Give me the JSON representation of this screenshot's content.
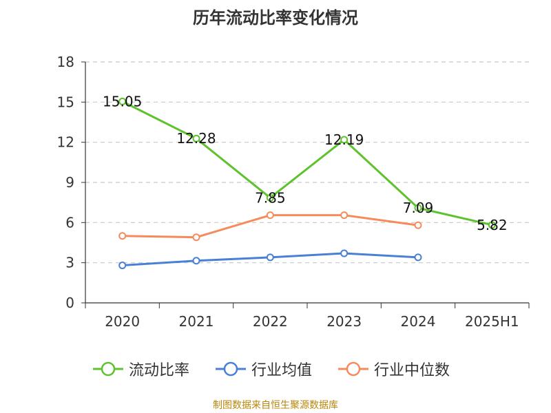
{
  "source_note": "制图数据来自恒生聚源数据库",
  "chart_data": {
    "type": "line",
    "title": "历年流动比率变化情况",
    "categories": [
      "2020",
      "2021",
      "2022",
      "2023",
      "2024",
      "2025H1"
    ],
    "ylim": [
      0,
      18
    ],
    "yticks": [
      0,
      3,
      6,
      9,
      12,
      15,
      18
    ],
    "grid": true,
    "legend_position": "bottom",
    "series": [
      {
        "name": "流动比率",
        "color": "#5ec22d",
        "values": [
          15.05,
          12.28,
          7.85,
          12.19,
          7.09,
          5.82
        ],
        "labels": [
          "15.05",
          "12.28",
          "7.85",
          "12.19",
          "7.09",
          "5.82"
        ]
      },
      {
        "name": "行业均值",
        "color": "#4a7fd6",
        "values": [
          2.8,
          3.15,
          3.4,
          3.7,
          3.4,
          null
        ]
      },
      {
        "name": "行业中位数",
        "color": "#f58b5c",
        "values": [
          5.0,
          4.9,
          6.55,
          6.55,
          5.8,
          null
        ]
      }
    ]
  }
}
